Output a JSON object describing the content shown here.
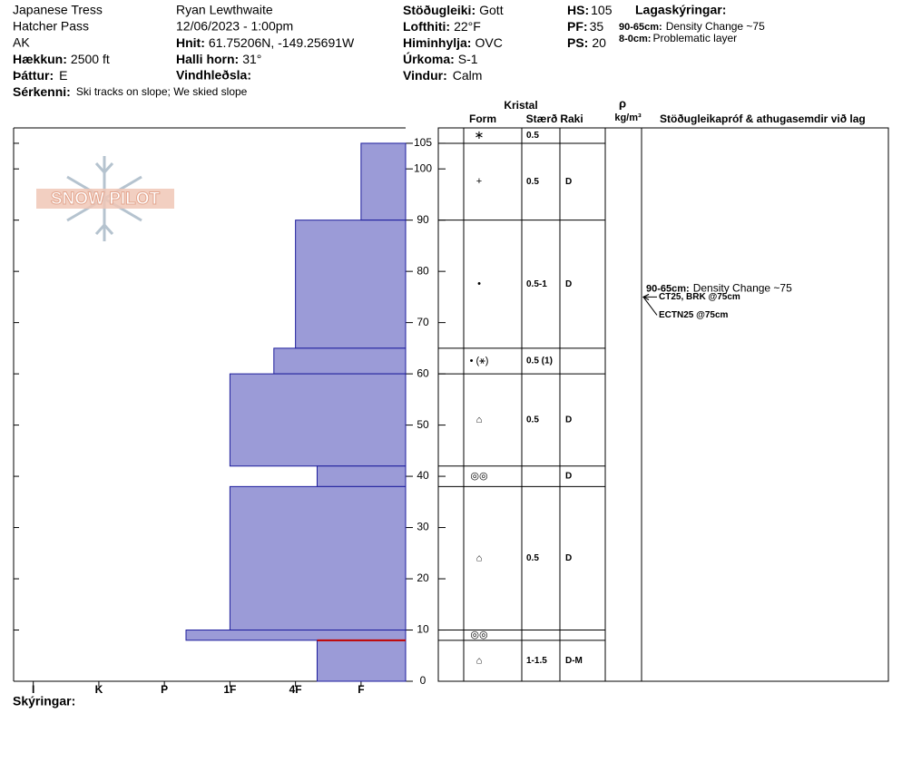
{
  "header": {
    "site": "Japanese Tress",
    "location": "Hatcher Pass",
    "state": "AK",
    "elevation": {
      "label": "Hækkun:",
      "value": "2500 ft"
    },
    "aspect": {
      "label": "Þáttur:",
      "value": "E"
    },
    "features": {
      "label": "Sérkenni:",
      "value": "Ski tracks on slope; We skied slope"
    },
    "observer": "Ryan Lewthwaite",
    "datetime": "12/06/2023 - 1:00pm",
    "coords": {
      "label": "Hnit:",
      "value": "61.75206N, -149.25691W"
    },
    "slope": {
      "label": "Halli horn:",
      "value": "31°"
    },
    "wind_loading": {
      "label": "Vindhleðsla:"
    },
    "stability": {
      "label": "Stöðugleiki:",
      "value": "Gott"
    },
    "air_temp": {
      "label": "Lofthiti:",
      "value": "22°F"
    },
    "sky": {
      "label": "Himinhylja:",
      "value": "OVC"
    },
    "precip": {
      "label": "Úrkoma:",
      "value": "S-1"
    },
    "wind": {
      "label": "Vindur:",
      "value": "Calm"
    },
    "hs": {
      "label": "HS:",
      "value": "105"
    },
    "pf": {
      "label": "PF:",
      "value": "35"
    },
    "ps": {
      "label": "PS:",
      "value": "20"
    },
    "notes_title": "Lagaskýringar:",
    "layer_notes": [
      {
        "range": "90-65cm:",
        "text": "Density Change ~75"
      },
      {
        "range": "8-0cm:",
        "text": "Problematic layer"
      }
    ],
    "logo": "SNOW PILOT",
    "footer": "Skýringar:"
  },
  "table_header": {
    "crystal": "Kristal",
    "form": "Form",
    "size": "Stærð",
    "moisture": "Raki",
    "rho": "ρ",
    "density_unit": "kg/m³",
    "comments": "Stöðugleikapróf & athugasemdir við lag"
  },
  "chart_data": {
    "type": "snow-profile",
    "xlim": [
      6.3,
      0.32
    ],
    "xticks": [
      {
        "value": 6,
        "label": "I"
      },
      {
        "value": 5,
        "label": "K"
      },
      {
        "value": 4,
        "label": "P"
      },
      {
        "value": 3,
        "label": "1F"
      },
      {
        "value": 2,
        "label": "4F"
      },
      {
        "value": 1,
        "label": "F"
      }
    ],
    "ylim": [
      0,
      108
    ],
    "yticks": [
      0,
      10,
      20,
      30,
      40,
      50,
      60,
      70,
      80,
      90,
      100,
      105
    ],
    "color": "#9b9bd7",
    "surface": {
      "form": "∗",
      "size": "0.5"
    },
    "layers": [
      {
        "top": 105,
        "bottom": 90,
        "hardness": 1,
        "form": "+",
        "size": "0.5",
        "moisture": "D"
      },
      {
        "top": 90,
        "bottom": 65,
        "hardness": 2,
        "form": "•",
        "size": "0.5-1",
        "moisture": "D"
      },
      {
        "top": 65,
        "bottom": 60,
        "hardness": 2.33,
        "form": "• (⚹)",
        "size": "0.5 (1)"
      },
      {
        "top": 60,
        "bottom": 42,
        "hardness": 3,
        "form": "⌂",
        "size": "0.5",
        "moisture": "D"
      },
      {
        "top": 42,
        "bottom": 38,
        "hardness": 1.67,
        "form": "◎◎",
        "moisture": "D"
      },
      {
        "top": 38,
        "bottom": 10,
        "hardness": 3,
        "form": "⌂",
        "size": "0.5",
        "moisture": "D"
      },
      {
        "top": 10,
        "bottom": 8,
        "hardness": 3.67,
        "form": "◎◎"
      },
      {
        "top": 8,
        "bottom": 0,
        "hardness": 1.67,
        "form": "⌂",
        "size": "1-1.5",
        "moisture": "D-M",
        "problematic": true
      }
    ],
    "tests": [
      {
        "label": "CT25, BRK @75cm",
        "depth": 75
      },
      {
        "label": "ECTN25 @75cm",
        "depth": 75
      }
    ]
  }
}
